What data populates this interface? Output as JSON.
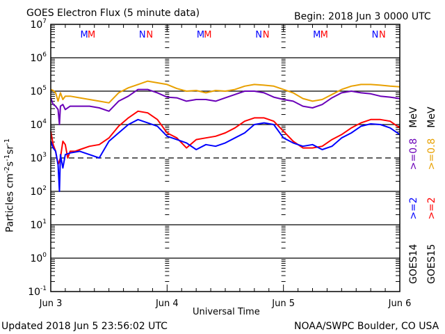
{
  "header": {
    "title": "GOES Electron Flux (5 minute data)",
    "begin": "Begin: 2018 Jun 3 0000 UTC"
  },
  "footer": {
    "updated": "Updated 2018 Jun  5 23:56:02 UTC",
    "credit": "NOAA/SWPC Boulder, CO USA"
  },
  "chart_data": {
    "type": "line",
    "title": "GOES Electron Flux (5 minute data)",
    "xlabel": "Universal Time",
    "ylabel": "Particles cm-2 s-1 sr-1",
    "yscale": "log",
    "ylim": [
      0.1,
      10000000
    ],
    "xlim_hours": [
      0,
      72
    ],
    "x_ticks": [
      {
        "hour": 0,
        "label": "Jun 3"
      },
      {
        "hour": 24,
        "label": "Jun 4"
      },
      {
        "hour": 48,
        "label": "Jun 5"
      },
      {
        "hour": 72,
        "label": "Jun 6"
      }
    ],
    "y_ticks": [
      {
        "exp": 7,
        "base": "10",
        "sup": "7"
      },
      {
        "exp": 6,
        "base": "10",
        "sup": "6"
      },
      {
        "exp": 5,
        "base": "10",
        "sup": "5"
      },
      {
        "exp": 4,
        "base": "10",
        "sup": "4"
      },
      {
        "exp": 3,
        "base": "10",
        "sup": "3"
      },
      {
        "exp": 2,
        "base": "10",
        "sup": "2"
      },
      {
        "exp": 1,
        "base": "10",
        "sup": "1"
      },
      {
        "exp": 0,
        "base": "10",
        "sup": "0"
      },
      {
        "exp": -1,
        "base": "10",
        "sup": "-1"
      }
    ],
    "gridlines_exp": [
      6,
      5,
      4,
      2,
      1,
      0
    ],
    "threshold_exp": 3,
    "markers": [
      {
        "hour": 6.9,
        "label": "M",
        "color": "#0000ff"
      },
      {
        "hour": 8.4,
        "label": "M",
        "color": "#ff0000"
      },
      {
        "hour": 18.9,
        "label": "N",
        "color": "#0000ff"
      },
      {
        "hour": 20.4,
        "label": "N",
        "color": "#ff0000"
      },
      {
        "hour": 30.9,
        "label": "M",
        "color": "#0000ff"
      },
      {
        "hour": 32.4,
        "label": "M",
        "color": "#ff0000"
      },
      {
        "hour": 42.9,
        "label": "N",
        "color": "#0000ff"
      },
      {
        "hour": 44.4,
        "label": "N",
        "color": "#ff0000"
      },
      {
        "hour": 54.9,
        "label": "M",
        "color": "#0000ff"
      },
      {
        "hour": 56.4,
        "label": "M",
        "color": "#ff0000"
      },
      {
        "hour": 66.9,
        "label": "N",
        "color": "#0000ff"
      },
      {
        "hour": 68.4,
        "label": "N",
        "color": "#ff0000"
      }
    ],
    "series": [
      {
        "name": "GOES15 >=0.8 MeV",
        "color": "#e8a000",
        "hours": [
          0,
          0.5,
          1,
          1.5,
          2,
          2.5,
          3,
          4,
          6,
          8,
          10,
          12,
          14,
          16,
          18,
          20,
          22,
          24,
          26,
          28,
          30,
          32,
          34,
          36,
          38,
          40,
          42,
          44,
          46,
          48,
          50,
          52,
          54,
          56,
          58,
          60,
          62,
          64,
          66,
          68,
          70,
          72
        ],
        "log10": [
          5.05,
          5.02,
          4.95,
          4.7,
          4.95,
          4.75,
          4.85,
          4.85,
          4.8,
          4.75,
          4.7,
          4.65,
          4.95,
          5.1,
          5.2,
          5.3,
          5.25,
          5.2,
          5.08,
          5.0,
          5.02,
          4.95,
          5.02,
          5.0,
          5.05,
          5.15,
          5.2,
          5.18,
          5.15,
          5.05,
          4.95,
          4.78,
          4.7,
          4.75,
          4.9,
          5.05,
          5.15,
          5.2,
          5.2,
          5.18,
          5.15,
          5.13
        ]
      },
      {
        "name": "GOES14 >=0.8 MeV",
        "color": "#6a00b8",
        "hours": [
          0,
          0.5,
          1,
          1.5,
          1.8,
          2,
          2.5,
          3,
          4,
          6,
          8,
          10,
          12,
          14,
          16,
          18,
          20,
          22,
          24,
          26,
          28,
          30,
          32,
          34,
          36,
          38,
          40,
          42,
          44,
          46,
          48,
          50,
          52,
          54,
          56,
          58,
          60,
          62,
          64,
          66,
          68,
          70,
          72
        ],
        "log10": [
          4.8,
          4.6,
          4.55,
          4.45,
          4.0,
          4.55,
          4.6,
          4.45,
          4.55,
          4.55,
          4.55,
          4.5,
          4.4,
          4.7,
          4.85,
          5.05,
          5.05,
          4.95,
          4.82,
          4.8,
          4.7,
          4.75,
          4.75,
          4.7,
          4.8,
          4.9,
          5.0,
          5.0,
          4.95,
          4.82,
          4.75,
          4.7,
          4.55,
          4.5,
          4.6,
          4.8,
          4.95,
          5.0,
          4.95,
          4.92,
          4.85,
          4.82,
          4.78
        ]
      },
      {
        "name": "GOES15 >=2 MeV",
        "color": "#ff0000",
        "hours": [
          0,
          0.5,
          1,
          1.5,
          2,
          2.5,
          3,
          3.5,
          4,
          5,
          6,
          8,
          10,
          12,
          14,
          16,
          18,
          20,
          22,
          24,
          26,
          28,
          30,
          32,
          34,
          36,
          38,
          40,
          42,
          44,
          46,
          48,
          50,
          52,
          54,
          56,
          58,
          60,
          62,
          64,
          66,
          68,
          70,
          72
        ],
        "log10": [
          3.8,
          3.4,
          3.2,
          2.8,
          3.0,
          3.5,
          3.4,
          3.0,
          3.2,
          3.2,
          3.25,
          3.35,
          3.4,
          3.6,
          3.95,
          4.2,
          4.4,
          4.35,
          4.15,
          3.75,
          3.6,
          3.3,
          3.55,
          3.6,
          3.65,
          3.75,
          3.9,
          4.1,
          4.2,
          4.2,
          4.1,
          3.8,
          3.5,
          3.3,
          3.3,
          3.35,
          3.55,
          3.7,
          3.9,
          4.05,
          4.15,
          4.15,
          4.1,
          3.9
        ]
      },
      {
        "name": "GOES14 >=2 MeV",
        "color": "#0000ff",
        "hours": [
          0,
          0.5,
          1,
          1.5,
          1.8,
          2,
          2.5,
          3,
          4,
          6,
          8,
          10,
          12,
          14,
          16,
          18,
          20,
          22,
          24,
          26,
          28,
          30,
          32,
          34,
          36,
          38,
          40,
          42,
          44,
          46,
          48,
          50,
          52,
          54,
          56,
          58,
          60,
          62,
          64,
          66,
          68,
          70,
          72
        ],
        "log10": [
          3.5,
          3.3,
          3.2,
          2.8,
          2.0,
          3.1,
          2.7,
          3.1,
          3.15,
          3.2,
          3.1,
          3.0,
          3.5,
          3.75,
          4.0,
          4.15,
          4.05,
          3.95,
          3.65,
          3.55,
          3.45,
          3.25,
          3.4,
          3.35,
          3.45,
          3.6,
          3.75,
          4.0,
          4.05,
          4.0,
          3.6,
          3.45,
          3.35,
          3.4,
          3.25,
          3.35,
          3.6,
          3.75,
          3.95,
          4.02,
          4.0,
          3.9,
          3.7
        ]
      }
    ],
    "legend": {
      "placement": "right",
      "columns": [
        {
          "satellite": "GOES14",
          "entries": [
            {
              "label": ">=2",
              "color": "#0000ff"
            },
            {
              "label": ">=0.8",
              "color": "#6a00b8"
            },
            {
              "label": "MeV",
              "color": "#000000"
            }
          ]
        },
        {
          "satellite": "GOES15",
          "entries": [
            {
              "label": ">=2",
              "color": "#ff0000"
            },
            {
              "label": ">=0.8",
              "color": "#e8a000"
            },
            {
              "label": "MeV",
              "color": "#000000"
            }
          ]
        }
      ]
    }
  }
}
